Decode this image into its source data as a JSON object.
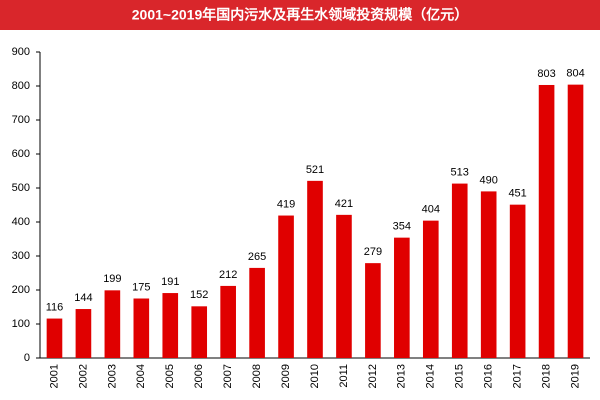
{
  "chart_data": {
    "type": "bar",
    "title": "2001~2019年国内污水及再生水领域投资规模（亿元）",
    "categories": [
      "2001",
      "2002",
      "2003",
      "2004",
      "2005",
      "2006",
      "2007",
      "2008",
      "2009",
      "2010",
      "2011",
      "2012",
      "2013",
      "2014",
      "2015",
      "2016",
      "2017",
      "2018",
      "2019"
    ],
    "values": [
      116,
      144,
      199,
      175,
      191,
      152,
      212,
      265,
      419,
      521,
      421,
      279,
      354,
      404,
      513,
      490,
      451,
      803,
      804
    ],
    "color": "#e00000",
    "ylim": [
      0,
      900
    ],
    "yticks": [
      0,
      100,
      200,
      300,
      400,
      500,
      600,
      700,
      800,
      900
    ],
    "grid": false
  }
}
